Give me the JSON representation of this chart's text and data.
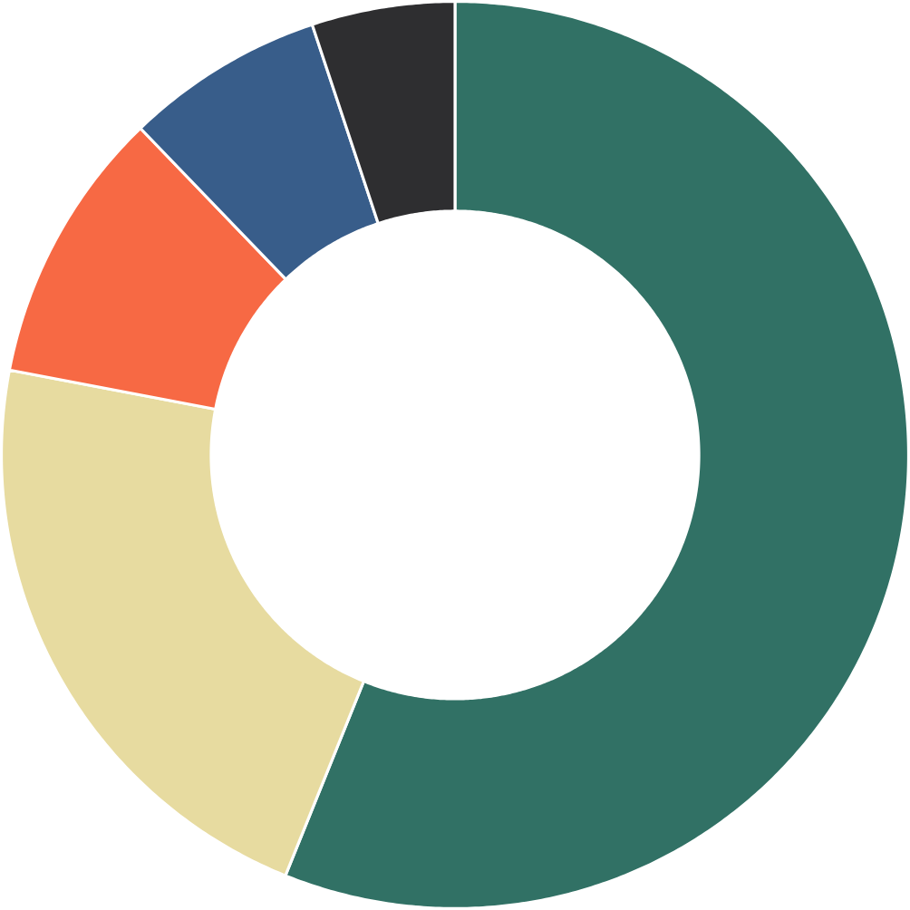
{
  "chart_data": {
    "type": "donut",
    "categories": [
      null,
      null,
      null,
      null,
      null
    ],
    "values": [
      56.1,
      21.9,
      9.8,
      7.1,
      5.1
    ],
    "colors": [
      "#317165",
      "#e7dba0",
      "#f76944",
      "#385d8a",
      "#2e2e30"
    ]
  }
}
